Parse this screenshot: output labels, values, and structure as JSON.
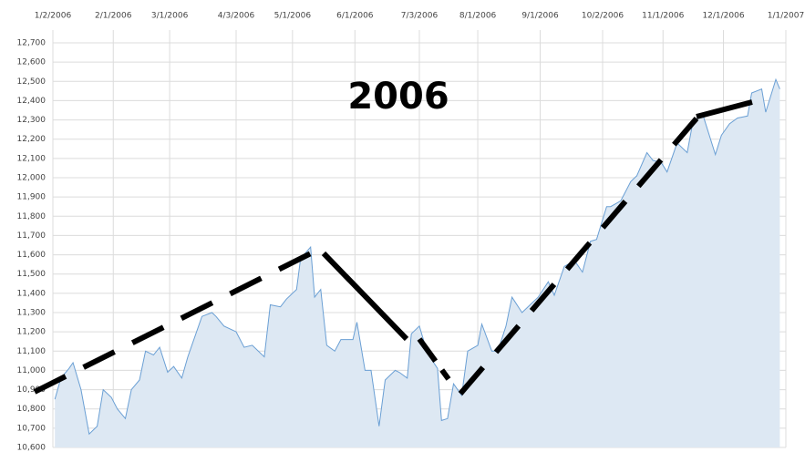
{
  "chart_data": {
    "type": "area",
    "annotation": "2006",
    "x": [
      "2006-01-03",
      "2006-01-06",
      "2006-01-10",
      "2006-01-12",
      "2006-01-16",
      "2006-01-20",
      "2006-01-24",
      "2006-01-27",
      "2006-01-31",
      "2006-02-03",
      "2006-02-07",
      "2006-02-10",
      "2006-02-14",
      "2006-02-17",
      "2006-02-21",
      "2006-02-24",
      "2006-02-28",
      "2006-03-03",
      "2006-03-07",
      "2006-03-10",
      "2006-03-17",
      "2006-03-22",
      "2006-03-24",
      "2006-03-28",
      "2006-04-03",
      "2006-04-07",
      "2006-04-11",
      "2006-04-17",
      "2006-04-20",
      "2006-04-25",
      "2006-04-28",
      "2006-05-03",
      "2006-05-05",
      "2006-05-10",
      "2006-05-12",
      "2006-05-15",
      "2006-05-18",
      "2006-05-22",
      "2006-05-25",
      "2006-05-31",
      "2006-06-02",
      "2006-06-06",
      "2006-06-09",
      "2006-06-13",
      "2006-06-16",
      "2006-06-21",
      "2006-06-23",
      "2006-06-27",
      "2006-06-29",
      "2006-07-03",
      "2006-07-07",
      "2006-07-12",
      "2006-07-14",
      "2006-07-17",
      "2006-07-20",
      "2006-07-24",
      "2006-07-27",
      "2006-08-01",
      "2006-08-03",
      "2006-08-08",
      "2006-08-11",
      "2006-08-15",
      "2006-08-18",
      "2006-08-23",
      "2006-08-28",
      "2006-08-31",
      "2006-09-05",
      "2006-09-08",
      "2006-09-13",
      "2006-09-18",
      "2006-09-22",
      "2006-09-26",
      "2006-09-29",
      "2006-10-04",
      "2006-10-06",
      "2006-10-11",
      "2006-10-16",
      "2006-10-19",
      "2006-10-24",
      "2006-10-27",
      "2006-10-31",
      "2006-11-03",
      "2006-11-08",
      "2006-11-13",
      "2006-11-16",
      "2006-11-21",
      "2006-11-27",
      "2006-11-30",
      "2006-12-04",
      "2006-12-08",
      "2006-12-13",
      "2006-12-15",
      "2006-12-20",
      "2006-12-22",
      "2006-12-27",
      "2006-12-29"
    ],
    "series": [
      {
        "color": "#6a9fd4",
        "fill": "#dde8f3",
        "values": [
          10850,
          10960,
          11010,
          11040,
          10900,
          10670,
          10710,
          10900,
          10860,
          10800,
          10750,
          10900,
          10950,
          11100,
          11080,
          11120,
          10990,
          11020,
          10960,
          11070,
          11280,
          11300,
          11280,
          11230,
          11200,
          11120,
          11130,
          11070,
          11340,
          11330,
          11370,
          11420,
          11580,
          11640,
          11380,
          11420,
          11130,
          11100,
          11160,
          11160,
          11250,
          11000,
          11000,
          10710,
          10950,
          11000,
          10990,
          10960,
          11190,
          11230,
          11090,
          11010,
          10740,
          10750,
          10930,
          10870,
          11100,
          11130,
          11240,
          11100,
          11100,
          11230,
          11380,
          11300,
          11350,
          11380,
          11460,
          11390,
          11540,
          11570,
          11510,
          11670,
          11680,
          11850,
          11850,
          11880,
          11980,
          12010,
          12130,
          12090,
          12080,
          12030,
          12180,
          12130,
          12300,
          12320,
          12120,
          12220,
          12280,
          12310,
          12320,
          12440,
          12460,
          12340,
          12510,
          12460
        ]
      }
    ],
    "xlim": [
      "2006-01-02",
      "2007-01-01"
    ],
    "xticks": [
      {
        "value": "2006-01-02",
        "label": "1/2/2006"
      },
      {
        "value": "2006-02-01",
        "label": "2/1/2006"
      },
      {
        "value": "2006-03-01",
        "label": "3/1/2006"
      },
      {
        "value": "2006-04-03",
        "label": "4/3/2006"
      },
      {
        "value": "2006-05-01",
        "label": "5/1/2006"
      },
      {
        "value": "2006-06-01",
        "label": "6/1/2006"
      },
      {
        "value": "2006-07-03",
        "label": "7/3/2006"
      },
      {
        "value": "2006-08-01",
        "label": "8/1/2006"
      },
      {
        "value": "2006-09-01",
        "label": "9/1/2006"
      },
      {
        "value": "2006-10-02",
        "label": "10/2/2006"
      },
      {
        "value": "2006-11-01",
        "label": "11/1/2006"
      },
      {
        "value": "2006-12-01",
        "label": "12/1/2006"
      },
      {
        "value": "2007-01-01",
        "label": "1/1/2007"
      }
    ],
    "ylim": [
      10600,
      12700
    ],
    "yticks": [
      {
        "value": 10600,
        "label": "10,600"
      },
      {
        "value": 10700,
        "label": "10,700"
      },
      {
        "value": 10800,
        "label": "10,800"
      },
      {
        "value": 10900,
        "label": "10,900"
      },
      {
        "value": 11000,
        "label": "11,000"
      },
      {
        "value": 11100,
        "label": "11,100"
      },
      {
        "value": 11200,
        "label": "11,200"
      },
      {
        "value": 11300,
        "label": "11,300"
      },
      {
        "value": 11400,
        "label": "11,400"
      },
      {
        "value": 11500,
        "label": "11,500"
      },
      {
        "value": 11600,
        "label": "11,600"
      },
      {
        "value": 11700,
        "label": "11,700"
      },
      {
        "value": 11800,
        "label": "11,800"
      },
      {
        "value": 11900,
        "label": "11,900"
      },
      {
        "value": 12000,
        "label": "12,000"
      },
      {
        "value": 12100,
        "label": "12,100"
      },
      {
        "value": 12200,
        "label": "12,200"
      },
      {
        "value": 12300,
        "label": "12,300"
      },
      {
        "value": 12400,
        "label": "12,400"
      },
      {
        "value": 12500,
        "label": "12,500"
      },
      {
        "value": 12600,
        "label": "12,600"
      },
      {
        "value": 12700,
        "label": "12,700"
      }
    ],
    "grid": true
  }
}
